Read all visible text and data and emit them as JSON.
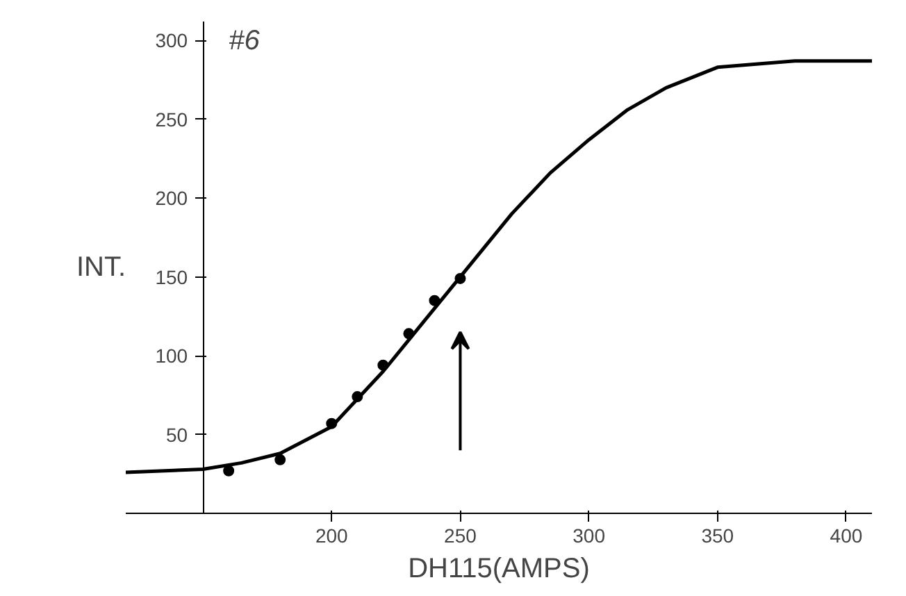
{
  "chart_data": {
    "type": "scatter",
    "xlabel": "DH115(AMPS)",
    "ylabel": "INT.",
    "annotations": [
      "#6"
    ],
    "xlim": [
      120,
      410
    ],
    "ylim": [
      0,
      312
    ],
    "xticks": [
      200,
      250,
      300,
      350,
      400
    ],
    "yticks": [
      50,
      100,
      150,
      200,
      250,
      300
    ],
    "grid": false,
    "series": [
      {
        "marker": "circle",
        "color": "#000000",
        "x": [
          160,
          180,
          200,
          210,
          220,
          230,
          240,
          250
        ],
        "values": [
          27,
          34,
          57,
          74,
          94,
          114,
          135,
          149
        ]
      },
      {
        "type": "line",
        "marker": "none",
        "line_style": "solid",
        "color": "#000000",
        "x": [
          120,
          150,
          165,
          180,
          200,
          220,
          235,
          250,
          270,
          285,
          300,
          315,
          330,
          350,
          380,
          410
        ],
        "values": [
          26,
          28,
          32,
          38,
          55,
          90,
          120,
          150,
          190,
          216,
          237,
          256,
          270,
          283,
          287,
          287
        ]
      }
    ]
  }
}
